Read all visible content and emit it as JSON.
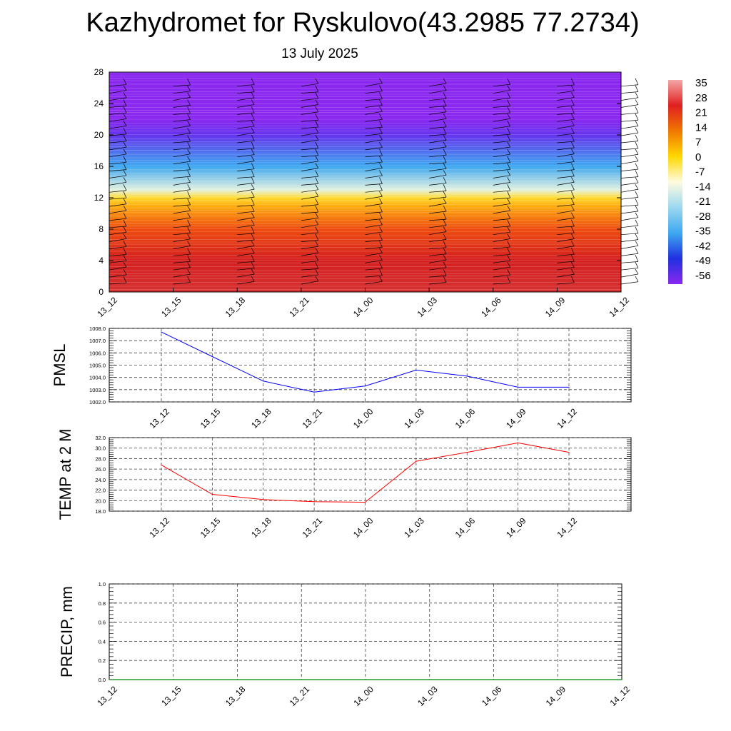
{
  "title": "Kazhydromet for Ryskulovo(43.2985 77.2734)",
  "subtitle": "13 July 2025",
  "colorbar": {
    "labels": [
      "35",
      "28",
      "21",
      "14",
      "7",
      "0",
      "-7",
      "-14",
      "-21",
      "-28",
      "-35",
      "-42",
      "-49",
      "-56"
    ],
    "colors": [
      "#f4a6a6",
      "#e02020",
      "#f07800",
      "#ffd800",
      "#fffbe0",
      "#9bd8f0",
      "#3ea8f0",
      "#2030e0",
      "#8a28f0"
    ]
  },
  "chart_data": [
    {
      "type": "heatmap",
      "name": "cross-section",
      "x_categories": [
        "13_12",
        "13_15",
        "13_18",
        "13_21",
        "14_00",
        "14_03",
        "14_06",
        "14_09",
        "14_12"
      ],
      "y_ticks": [
        "28",
        "24",
        "20",
        "16",
        "12",
        "8",
        "4",
        "0"
      ],
      "ylim": [
        0,
        28
      ],
      "color_scale": [
        -56,
        35
      ],
      "color_bands": [
        {
          "y": 0,
          "value": 33
        },
        {
          "y": 4,
          "value": 30
        },
        {
          "y": 8,
          "value": 18
        },
        {
          "y": 11,
          "value": 5
        },
        {
          "y": 12,
          "value": -5
        },
        {
          "y": 13,
          "value": -14
        },
        {
          "y": 16,
          "value": -28
        },
        {
          "y": 20,
          "value": -50
        },
        {
          "y": 22,
          "value": -56
        },
        {
          "y": 28,
          "value": -56
        }
      ],
      "wind_barbs": "present"
    },
    {
      "type": "line",
      "name": "pmsl",
      "ylabel": "PMSL",
      "categories": [
        "13_12",
        "13_15",
        "13_18",
        "13_21",
        "14_00",
        "14_03",
        "14_06",
        "14_09",
        "14_12"
      ],
      "y_ticks": [
        "1008.0",
        "1007.0",
        "1006.0",
        "1005.0",
        "1004.0",
        "1003.0",
        "1002.0"
      ],
      "ylim": [
        1002,
        1008
      ],
      "color": "#0000ff",
      "values": [
        1007.7,
        1005.7,
        1003.7,
        1002.8,
        1003.3,
        1004.6,
        1004.1,
        1003.2,
        1003.2
      ]
    },
    {
      "type": "line",
      "name": "temp2m",
      "ylabel": "TEMP at 2 M",
      "categories": [
        "13_12",
        "13_15",
        "13_18",
        "13_21",
        "14_00",
        "14_03",
        "14_06",
        "14_09",
        "14_12"
      ],
      "y_ticks": [
        "32.0",
        "30.0",
        "28.0",
        "26.0",
        "24.0",
        "22.0",
        "20.0",
        "18.0"
      ],
      "ylim": [
        18,
        32
      ],
      "color": "#ff0000",
      "values": [
        26.8,
        21.2,
        20.2,
        19.8,
        19.7,
        27.5,
        29.2,
        31.0,
        29.2
      ]
    },
    {
      "type": "line",
      "name": "precip",
      "ylabel": "PRECIP, mm",
      "categories": [
        "13_12",
        "13_15",
        "13_18",
        "13_21",
        "14_00",
        "14_03",
        "14_06",
        "14_09",
        "14_12"
      ],
      "y_ticks": [
        "1.0",
        "0.8",
        "0.6",
        "0.4",
        "0.2",
        "0.0"
      ],
      "ylim": [
        0,
        1
      ],
      "color": "#008000",
      "values": [
        0,
        0,
        0,
        0,
        0,
        0,
        0,
        0,
        0
      ]
    }
  ]
}
